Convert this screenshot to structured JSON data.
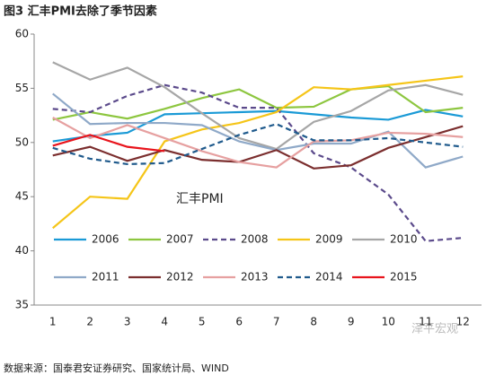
{
  "chart_data": {
    "type": "line",
    "title": "图3 汇丰PMI去除了季节因素",
    "annotation": "汇丰PMI",
    "source": "数据来源：国泰君安证券研究、国家统计局、WIND",
    "watermark": "泽平宏观",
    "categories": [
      "1",
      "2",
      "3",
      "4",
      "5",
      "6",
      "7",
      "8",
      "9",
      "10",
      "11",
      "12"
    ],
    "ylim": [
      35,
      60
    ],
    "yticks": [
      35,
      40,
      45,
      50,
      55,
      60
    ],
    "grid": false,
    "series": [
      {
        "name": "2006",
        "color": "#1a9ad6",
        "dash": false,
        "values": [
          50.1,
          50.6,
          50.9,
          52.6,
          52.7,
          52.8,
          52.9,
          52.6,
          52.3,
          52.1,
          53.0,
          52.4
        ]
      },
      {
        "name": "2007",
        "color": "#8dc63f",
        "dash": false,
        "values": [
          52.1,
          52.8,
          52.2,
          53.1,
          54.1,
          54.9,
          53.2,
          53.3,
          54.9,
          55.2,
          52.8,
          53.2
        ]
      },
      {
        "name": "2008",
        "color": "#5b4a8b",
        "dash": true,
        "values": [
          53.1,
          52.8,
          54.3,
          55.3,
          54.6,
          53.2,
          53.2,
          49.0,
          47.7,
          45.2,
          40.9,
          41.2
        ]
      },
      {
        "name": "2009",
        "color": "#f5c518",
        "dash": false,
        "values": [
          42.1,
          45.0,
          44.8,
          50.1,
          51.2,
          51.8,
          52.8,
          55.1,
          54.9,
          55.3,
          55.7,
          56.1
        ]
      },
      {
        "name": "2010",
        "color": "#a6a6a6",
        "dash": false,
        "values": [
          57.4,
          55.8,
          56.9,
          55.1,
          52.7,
          50.4,
          49.4,
          51.9,
          52.9,
          54.8,
          55.3,
          54.4
        ]
      },
      {
        "name": "2011",
        "color": "#8fa9c8",
        "dash": false,
        "values": [
          54.5,
          51.7,
          51.8,
          51.8,
          51.6,
          50.1,
          49.3,
          49.9,
          49.9,
          51.0,
          47.7,
          48.7
        ]
      },
      {
        "name": "2012",
        "color": "#7b2e2e",
        "dash": false,
        "values": [
          48.8,
          49.6,
          48.3,
          49.3,
          48.4,
          48.2,
          49.3,
          47.6,
          47.9,
          49.5,
          50.5,
          51.5
        ]
      },
      {
        "name": "2013",
        "color": "#e6a0a0",
        "dash": false,
        "values": [
          52.3,
          50.4,
          51.6,
          50.4,
          49.2,
          48.2,
          47.7,
          50.1,
          50.2,
          50.9,
          50.8,
          50.5
        ]
      },
      {
        "name": "2014",
        "color": "#1f5a8c",
        "dash": true,
        "values": [
          49.5,
          48.5,
          48.0,
          48.1,
          49.4,
          50.7,
          51.7,
          50.2,
          50.2,
          50.4,
          50.0,
          49.6
        ]
      },
      {
        "name": "2015",
        "color": "#e8141c",
        "dash": false,
        "values": [
          49.7,
          50.7,
          49.6,
          49.2,
          null,
          null,
          null,
          null,
          null,
          null,
          null,
          null
        ]
      }
    ]
  }
}
